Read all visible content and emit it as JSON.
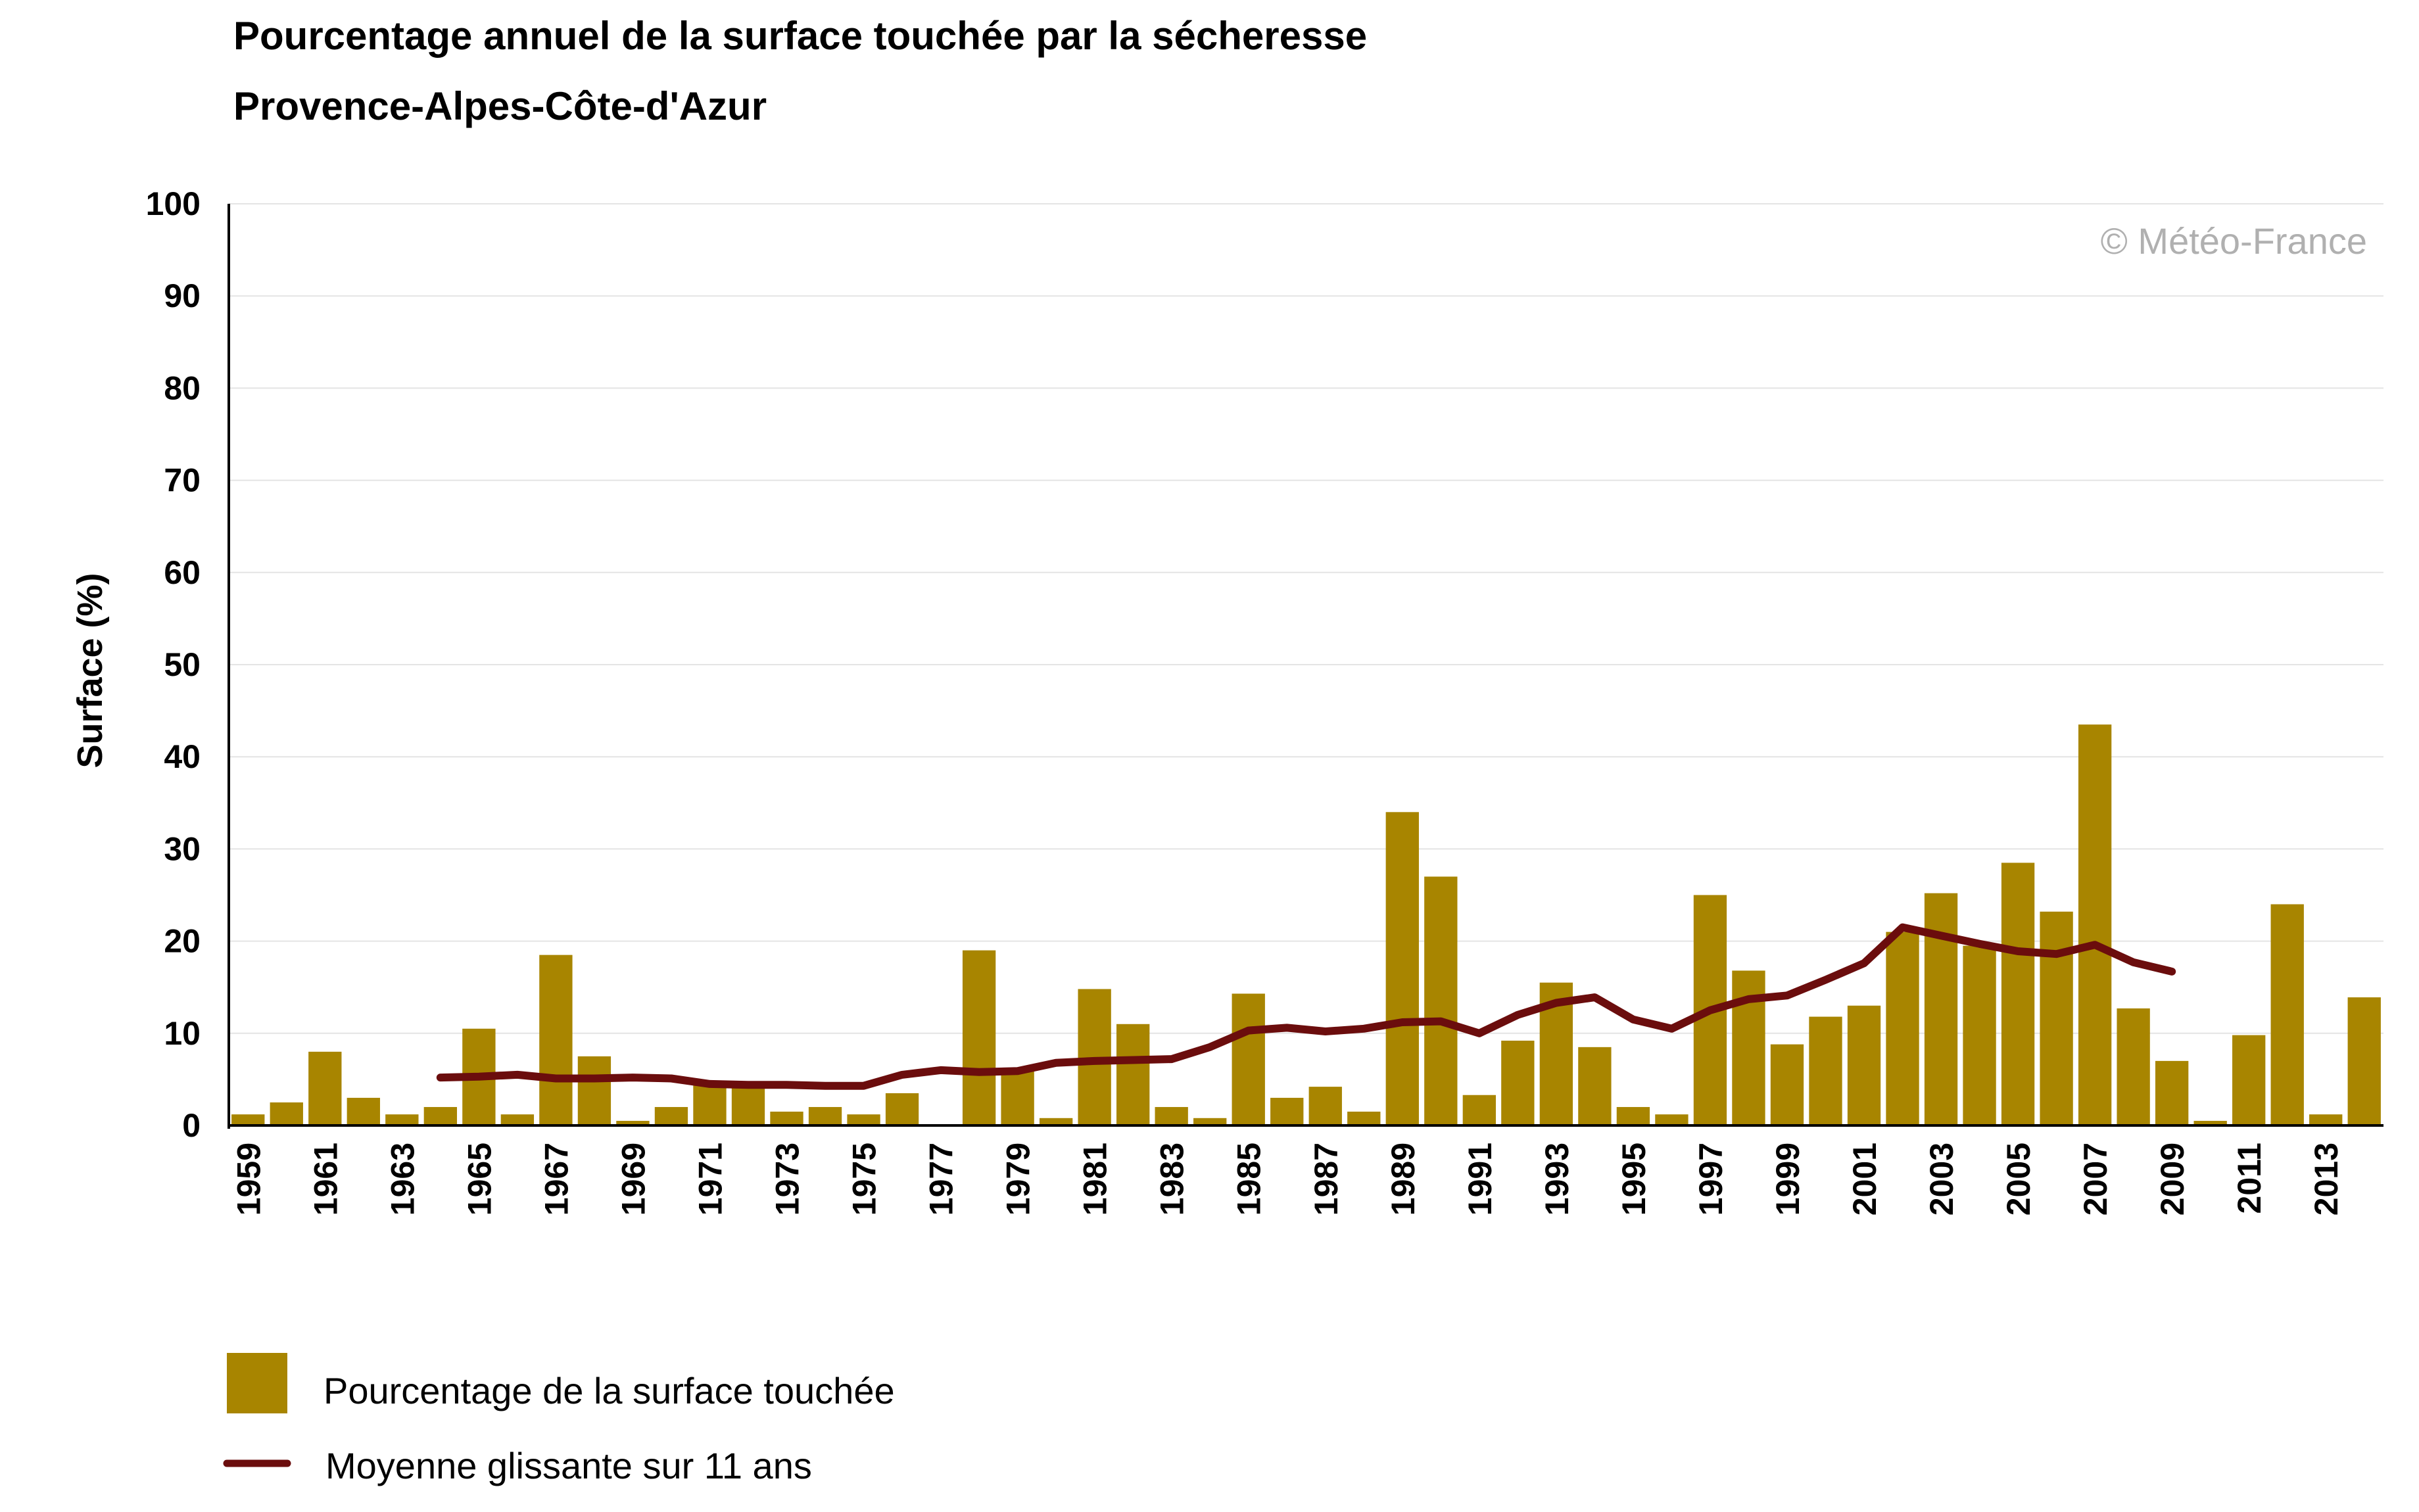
{
  "chart_data": {
    "type": "bar",
    "title": "Pourcentage annuel de la surface touchée par la sécheresse",
    "subtitle": "Provence-Alpes-Côte-d'Azur",
    "ylabel": "Surface (%)",
    "xlabel": "",
    "ylim": [
      0,
      100
    ],
    "yticks": [
      "0",
      "10",
      "20",
      "30",
      "40",
      "50",
      "60",
      "70",
      "80",
      "90",
      "100"
    ],
    "grid": true,
    "legend_position": "bottom-left",
    "watermark": "© Météo-France",
    "categories": [
      1959,
      1960,
      1961,
      1962,
      1963,
      1964,
      1965,
      1966,
      1967,
      1968,
      1969,
      1970,
      1971,
      1972,
      1973,
      1974,
      1975,
      1976,
      1977,
      1978,
      1979,
      1980,
      1981,
      1982,
      1983,
      1984,
      1985,
      1986,
      1987,
      1988,
      1989,
      1990,
      1991,
      1992,
      1993,
      1994,
      1995,
      1996,
      1997,
      1998,
      1999,
      2000,
      2001,
      2002,
      2003,
      2004,
      2005,
      2006,
      2007,
      2008,
      2009,
      2010,
      2011,
      2012,
      2013,
      2014
    ],
    "xtick_labels": [
      "1959",
      "1961",
      "1963",
      "1965",
      "1967",
      "1969",
      "1971",
      "1973",
      "1975",
      "1977",
      "1979",
      "1981",
      "1983",
      "1985",
      "1987",
      "1989",
      "1991",
      "1993",
      "1995",
      "1997",
      "1999",
      "2001",
      "2003",
      "2005",
      "2007",
      "2009",
      "2011",
      "2013"
    ],
    "series": [
      {
        "name": "Pourcentage de la surface touchée",
        "type": "bar",
        "color": "#a88500",
        "values": [
          1.2,
          2.5,
          8,
          3,
          1.2,
          2,
          10.5,
          1.2,
          18.5,
          7.5,
          0.5,
          2,
          4.5,
          4.5,
          1.5,
          2,
          1.2,
          3.5,
          0,
          19,
          6,
          0.8,
          14.8,
          11,
          2,
          0.8,
          14.3,
          3,
          4.2,
          1.5,
          34,
          27,
          3.3,
          9.2,
          15.5,
          8.5,
          2,
          1.2,
          25,
          16.8,
          8.8,
          11.8,
          13,
          21,
          25.2,
          19.5,
          28.5,
          23.2,
          43.5,
          12.7,
          7,
          0.5,
          9.8,
          24,
          1.2,
          13.9
        ]
      },
      {
        "name": "Moyenne glissante sur 11 ans",
        "type": "line",
        "color": "#6b0d0d",
        "x": [
          1964,
          1965,
          1966,
          1967,
          1968,
          1969,
          1970,
          1971,
          1972,
          1973,
          1974,
          1975,
          1976,
          1977,
          1978,
          1979,
          1980,
          1981,
          1982,
          1983,
          1984,
          1985,
          1986,
          1987,
          1988,
          1989,
          1990,
          1991,
          1992,
          1993,
          1994,
          1995,
          1996,
          1997,
          1998,
          1999,
          2000,
          2001,
          2002,
          2003,
          2004,
          2005,
          2006,
          2007,
          2008,
          2009
        ],
        "values": [
          5.2,
          5.3,
          5.5,
          5.1,
          5.1,
          5.2,
          5.1,
          4.5,
          4.4,
          4.4,
          4.3,
          4.3,
          5.5,
          6,
          5.8,
          5.9,
          6.8,
          7,
          7.1,
          7.2,
          8.5,
          10.3,
          10.6,
          10.2,
          10.5,
          11.2,
          11.3,
          10,
          12,
          13.3,
          13.9,
          11.5,
          10.5,
          12.5,
          13.7,
          14.1,
          15.8,
          17.6,
          21.5,
          20.6,
          19.7,
          18.9,
          18.6,
          19.6,
          17.7,
          16.7
        ]
      }
    ]
  }
}
